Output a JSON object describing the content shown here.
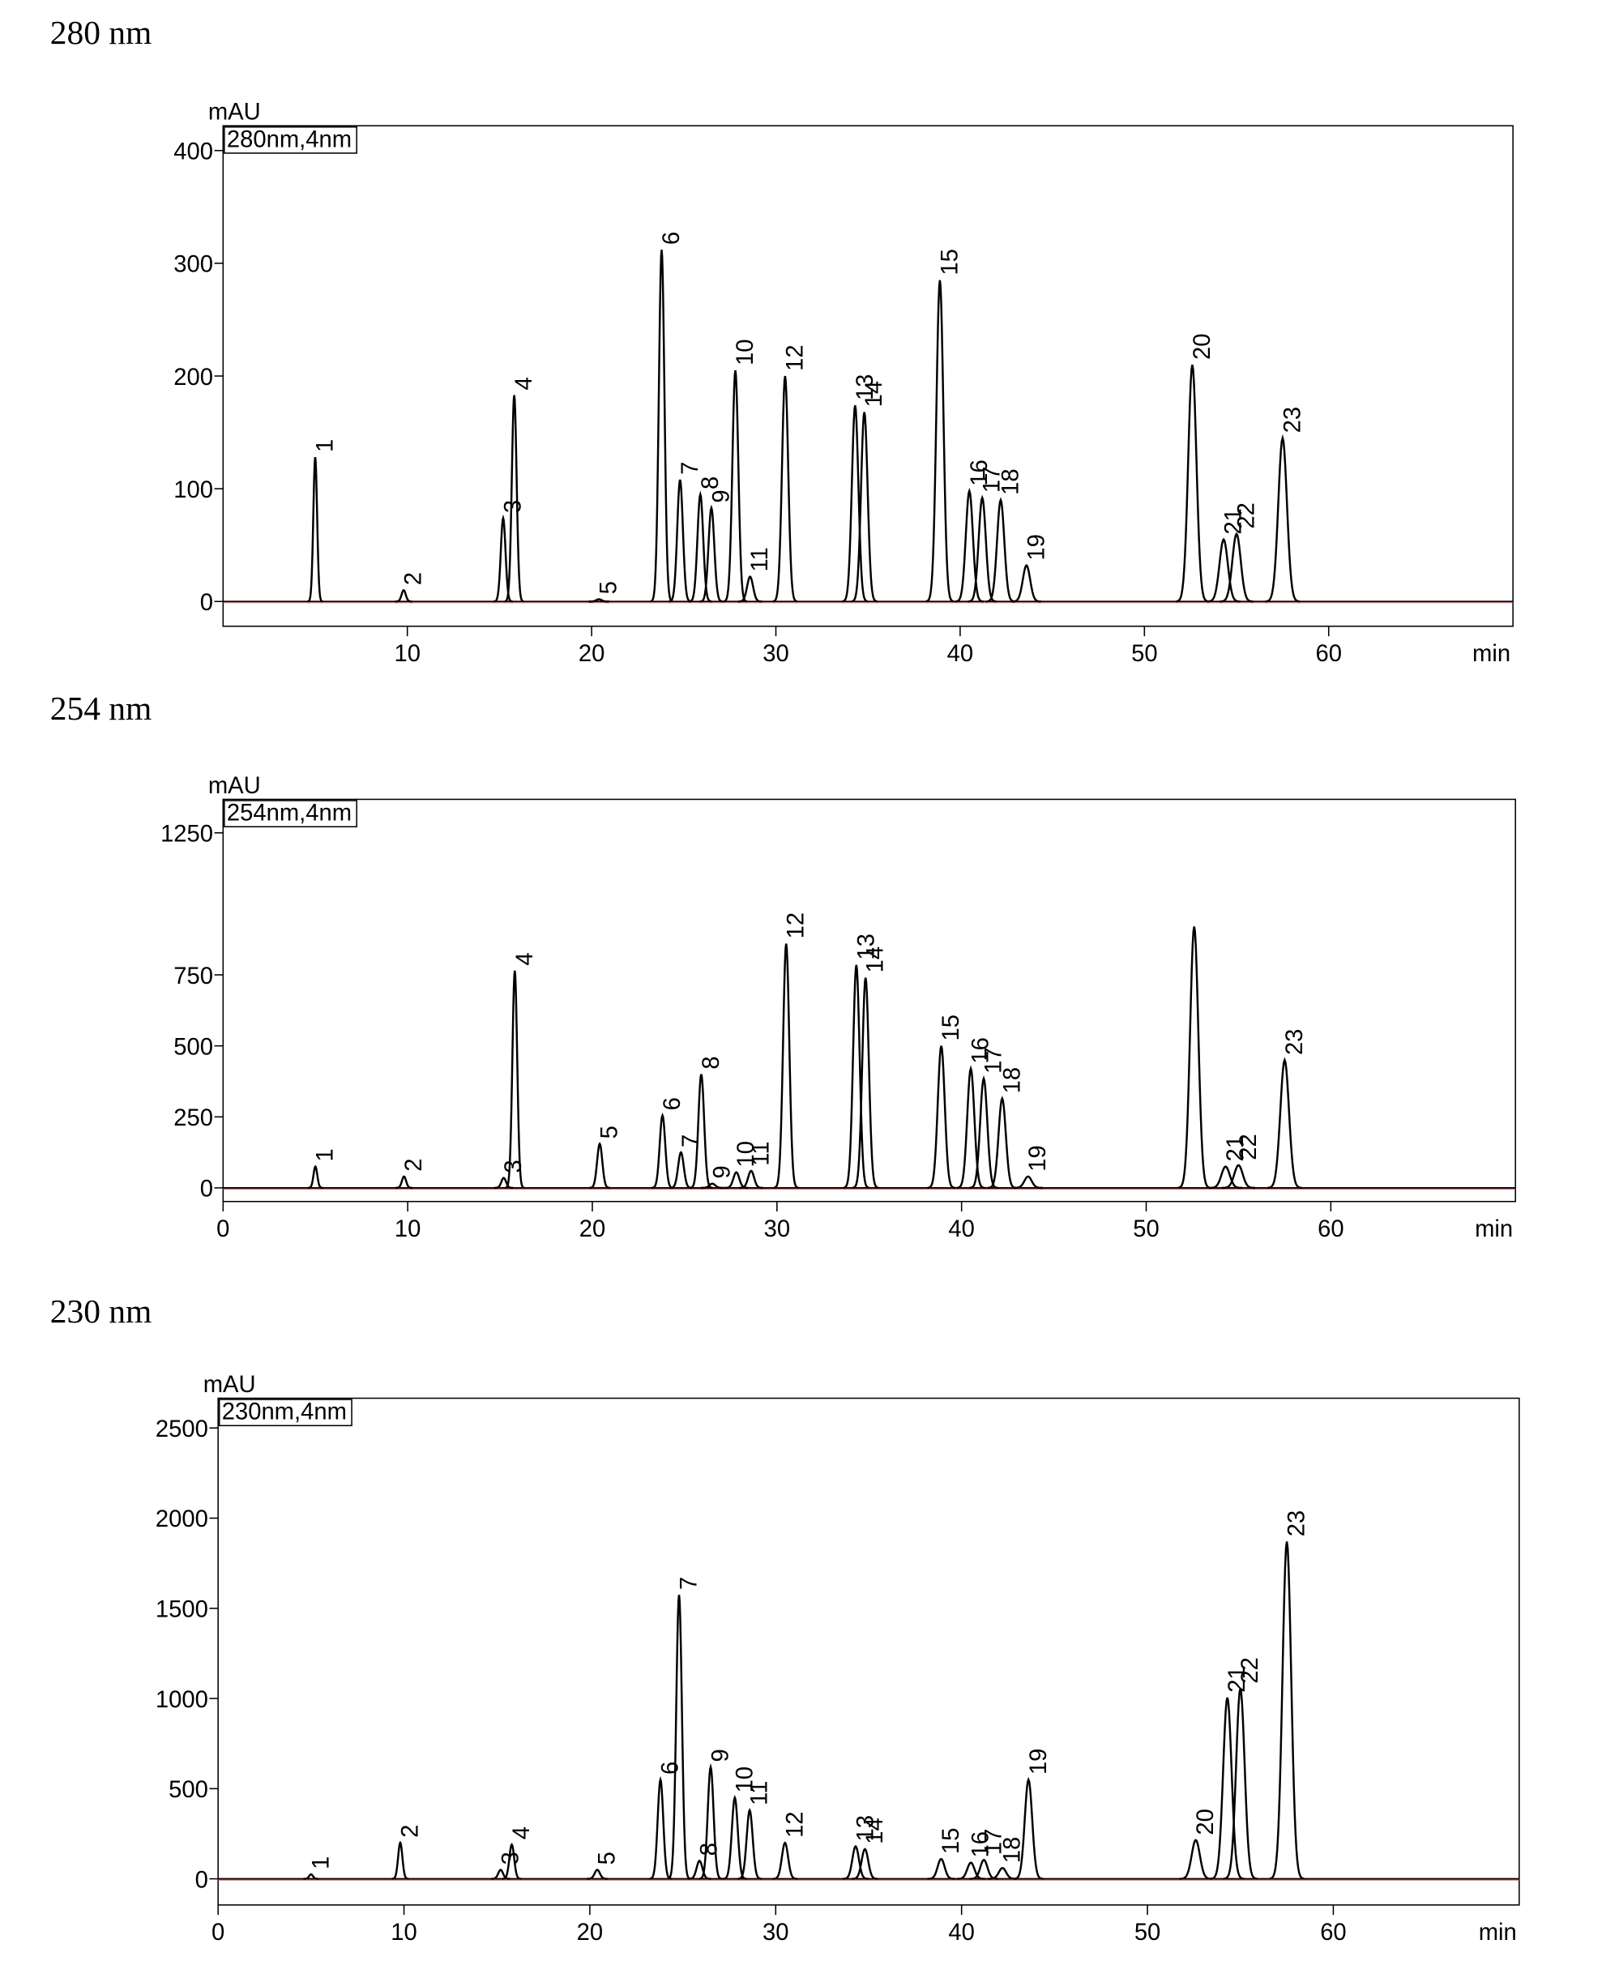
{
  "chart_data": [
    {
      "type": "chromatogram",
      "title": "280 nm",
      "y_label": "mAU",
      "channel": "280nm,4nm",
      "x_label": "min",
      "color": "#000000",
      "xlim": [
        0,
        70
      ],
      "xticks": [
        10,
        20,
        30,
        40,
        50,
        60
      ],
      "ylim": [
        -22,
        422
      ],
      "yticks": [
        0,
        100,
        200,
        300,
        400
      ],
      "labels": [
        "1",
        "2",
        "3",
        "4",
        "5",
        "6",
        "7",
        "8",
        "9",
        "10",
        "11",
        "12",
        "13",
        "14",
        "15",
        "16",
        "17",
        "18",
        "19",
        "20",
        "21",
        "22",
        "23"
      ],
      "x": [
        5.0,
        9.8,
        15.2,
        15.8,
        20.4,
        23.8,
        24.8,
        25.9,
        26.5,
        27.8,
        28.6,
        30.5,
        34.3,
        34.8,
        38.9,
        40.5,
        41.2,
        42.2,
        43.6,
        52.6,
        54.3,
        55.0,
        57.5
      ],
      "values": [
        128,
        10,
        74,
        183,
        2,
        312,
        108,
        95,
        83,
        205,
        22,
        200,
        174,
        168,
        285,
        98,
        92,
        90,
        32,
        210,
        55,
        60,
        145
      ]
    },
    {
      "type": "chromatogram",
      "title": "254 nm",
      "y_label": "mAU",
      "channel": "254nm,4nm",
      "x_label": "min",
      "color": "#000000",
      "xlim": [
        0,
        70
      ],
      "xticks": [
        0,
        10,
        20,
        30,
        40,
        50,
        60
      ],
      "ylim": [
        -48,
        1368
      ],
      "yticks": [
        0,
        250,
        500,
        750,
        1250
      ],
      "labels": [
        "1",
        "2",
        "3",
        "4",
        "5",
        "6",
        "7",
        "8",
        "9",
        "10",
        "11",
        "12",
        "13",
        "14",
        "15",
        "16",
        "17",
        "18",
        "19",
        null,
        "21",
        "22",
        "23"
      ],
      "x": [
        5.0,
        9.8,
        15.2,
        15.8,
        20.4,
        23.8,
        24.8,
        25.9,
        26.5,
        27.8,
        28.6,
        30.5,
        34.3,
        34.8,
        38.9,
        40.5,
        41.2,
        42.2,
        43.6,
        52.6,
        54.3,
        55.0,
        57.5
      ],
      "values": [
        75,
        40,
        35,
        765,
        155,
        255,
        125,
        400,
        15,
        55,
        60,
        860,
        785,
        740,
        500,
        420,
        385,
        315,
        40,
        920,
        75,
        80,
        450
      ]
    },
    {
      "type": "chromatogram",
      "title": "230 nm",
      "y_label": "mAU",
      "channel": "230nm,4nm",
      "x_label": "min",
      "color": "#000000",
      "xlim": [
        0,
        70
      ],
      "xticks": [
        0,
        10,
        20,
        30,
        40,
        50,
        60
      ],
      "ylim": [
        -145,
        2665
      ],
      "yticks": [
        0,
        500,
        1000,
        1500,
        2000,
        2500
      ],
      "labels": [
        "1",
        "2",
        "3",
        "4",
        "5",
        "6",
        "7",
        "8",
        "9",
        "10",
        "11",
        "12",
        "13",
        "14",
        "15",
        "16",
        "17",
        "18",
        "19",
        "20",
        "21",
        "22",
        "23"
      ],
      "x": [
        5.0,
        9.8,
        15.2,
        15.8,
        20.4,
        23.8,
        24.8,
        25.9,
        26.5,
        27.8,
        28.6,
        30.5,
        34.3,
        34.8,
        38.9,
        40.5,
        41.2,
        42.2,
        43.6,
        52.6,
        54.3,
        55.0,
        57.5
      ],
      "values": [
        25,
        200,
        50,
        190,
        50,
        550,
        1575,
        100,
        620,
        450,
        380,
        200,
        180,
        165,
        110,
        90,
        105,
        60,
        550,
        215,
        1005,
        1055,
        1870
      ]
    }
  ]
}
